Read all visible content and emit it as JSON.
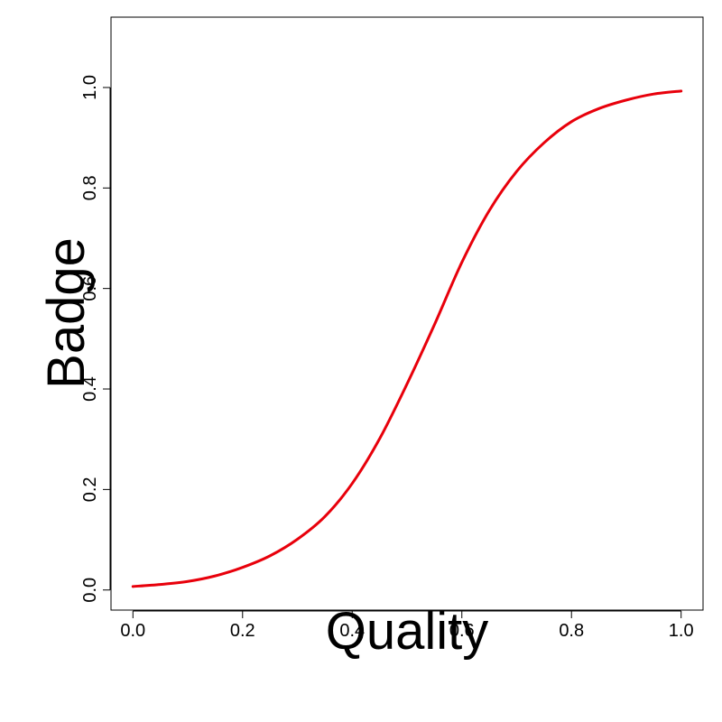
{
  "chart_data": {
    "type": "line",
    "xlabel": "Quality",
    "ylabel": "Badge",
    "xlim": [
      -0.04,
      1.04
    ],
    "ylim": [
      -0.04,
      1.14
    ],
    "x_ticks": [
      0.0,
      0.2,
      0.4,
      0.6,
      0.8,
      1.0
    ],
    "x_tick_labels": [
      "0.0",
      "0.2",
      "0.4",
      "0.6",
      "0.8",
      "1.0"
    ],
    "y_ticks": [
      0.0,
      0.2,
      0.4,
      0.6,
      0.8,
      1.0
    ],
    "y_tick_labels": [
      "0.0",
      "0.2",
      "0.4",
      "0.6",
      "0.8",
      "1.0"
    ],
    "grid": false,
    "line_color": "#e8000b",
    "series": [
      {
        "x": [
          0.0,
          0.05,
          0.1,
          0.15,
          0.2,
          0.25,
          0.3,
          0.35,
          0.4,
          0.45,
          0.5,
          0.55,
          0.6,
          0.65,
          0.7,
          0.75,
          0.8,
          0.85,
          0.9,
          0.95,
          1.0
        ],
        "values": [
          0.007,
          0.011,
          0.017,
          0.028,
          0.045,
          0.068,
          0.101,
          0.146,
          0.212,
          0.301,
          0.41,
          0.528,
          0.652,
          0.755,
          0.833,
          0.89,
          0.932,
          0.958,
          0.975,
          0.987,
          0.993
        ]
      }
    ]
  }
}
